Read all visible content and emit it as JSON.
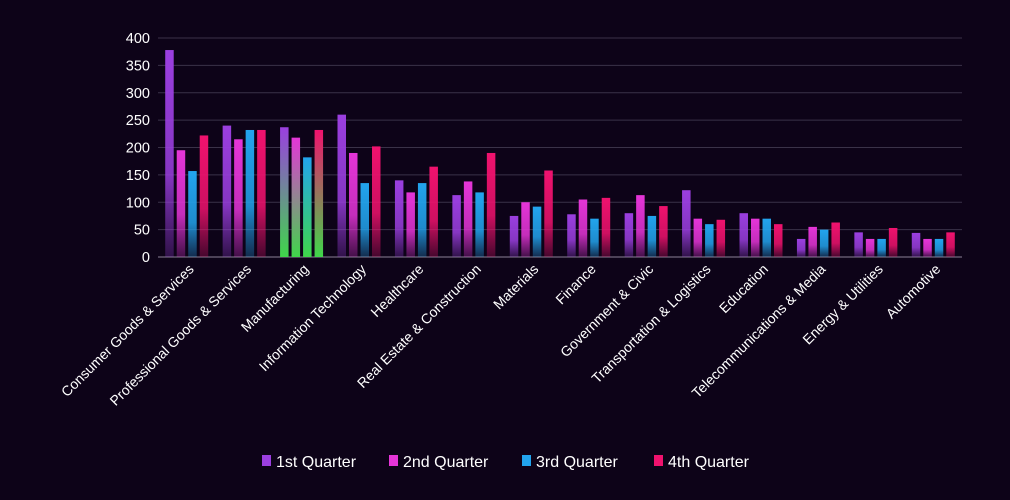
{
  "chart_data": {
    "type": "bar",
    "categories": [
      "Consumer Goods & Services",
      "Professional Goods & Services",
      "Manufacturing",
      "Information Technology",
      "Healthcare",
      "Real Estate & Construction",
      "Materials",
      "Finance",
      "Government & Civic",
      "Transportation & Logistics",
      "Education",
      "Telecommunications & Media",
      "Energy & Utilities",
      "Automotive"
    ],
    "series": [
      {
        "name": "1st Quarter",
        "color": "#9b3fe0",
        "values": [
          378,
          240,
          237,
          260,
          140,
          113,
          75,
          78,
          80,
          122,
          80,
          33,
          45,
          44
        ]
      },
      {
        "name": "2nd Quarter",
        "color": "#e535d8",
        "values": [
          195,
          215,
          218,
          190,
          118,
          138,
          100,
          105,
          113,
          70,
          70,
          55,
          33,
          33
        ]
      },
      {
        "name": "3rd Quarter",
        "color": "#22a4ee",
        "values": [
          157,
          232,
          182,
          135,
          135,
          118,
          92,
          70,
          75,
          60,
          70,
          50,
          33,
          33
        ]
      },
      {
        "name": "4th Quarter",
        "color": "#f0126e",
        "values": [
          222,
          232,
          232,
          202,
          165,
          190,
          158,
          108,
          93,
          68,
          60,
          63,
          53,
          45
        ]
      }
    ],
    "highlight": {
      "category": "Manufacturing",
      "color": "#3fd64a"
    },
    "title": "",
    "xlabel": "",
    "ylabel": "",
    "ylim": [
      0,
      400
    ],
    "yticks": [
      0,
      50,
      100,
      150,
      200,
      250,
      300,
      350,
      400
    ],
    "grid": true,
    "legend_position": "bottom"
  }
}
